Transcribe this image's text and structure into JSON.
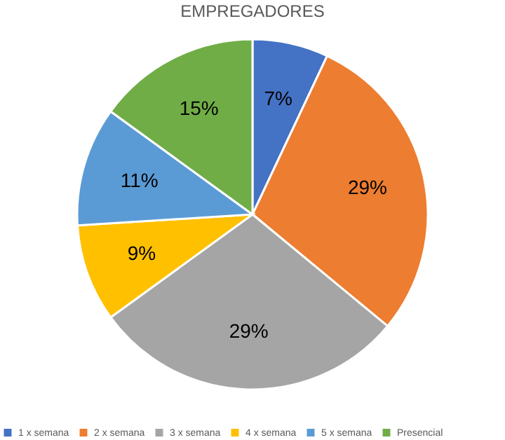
{
  "chart_data": {
    "type": "pie",
    "title": "EMPREGADORES",
    "categories": [
      "1 x semana",
      "2 x semana",
      "3 x semana",
      "4 x semana",
      "5 x semana",
      "Presencial"
    ],
    "values": [
      7,
      29,
      29,
      9,
      11,
      15
    ],
    "value_labels": [
      "7%",
      "29%",
      "29%",
      "9%",
      "11%",
      "15%"
    ],
    "colors": [
      "#4472c4",
      "#ed7d31",
      "#a5a5a5",
      "#ffc000",
      "#5b9bd5",
      "#70ad47"
    ],
    "legend": "bottom"
  }
}
